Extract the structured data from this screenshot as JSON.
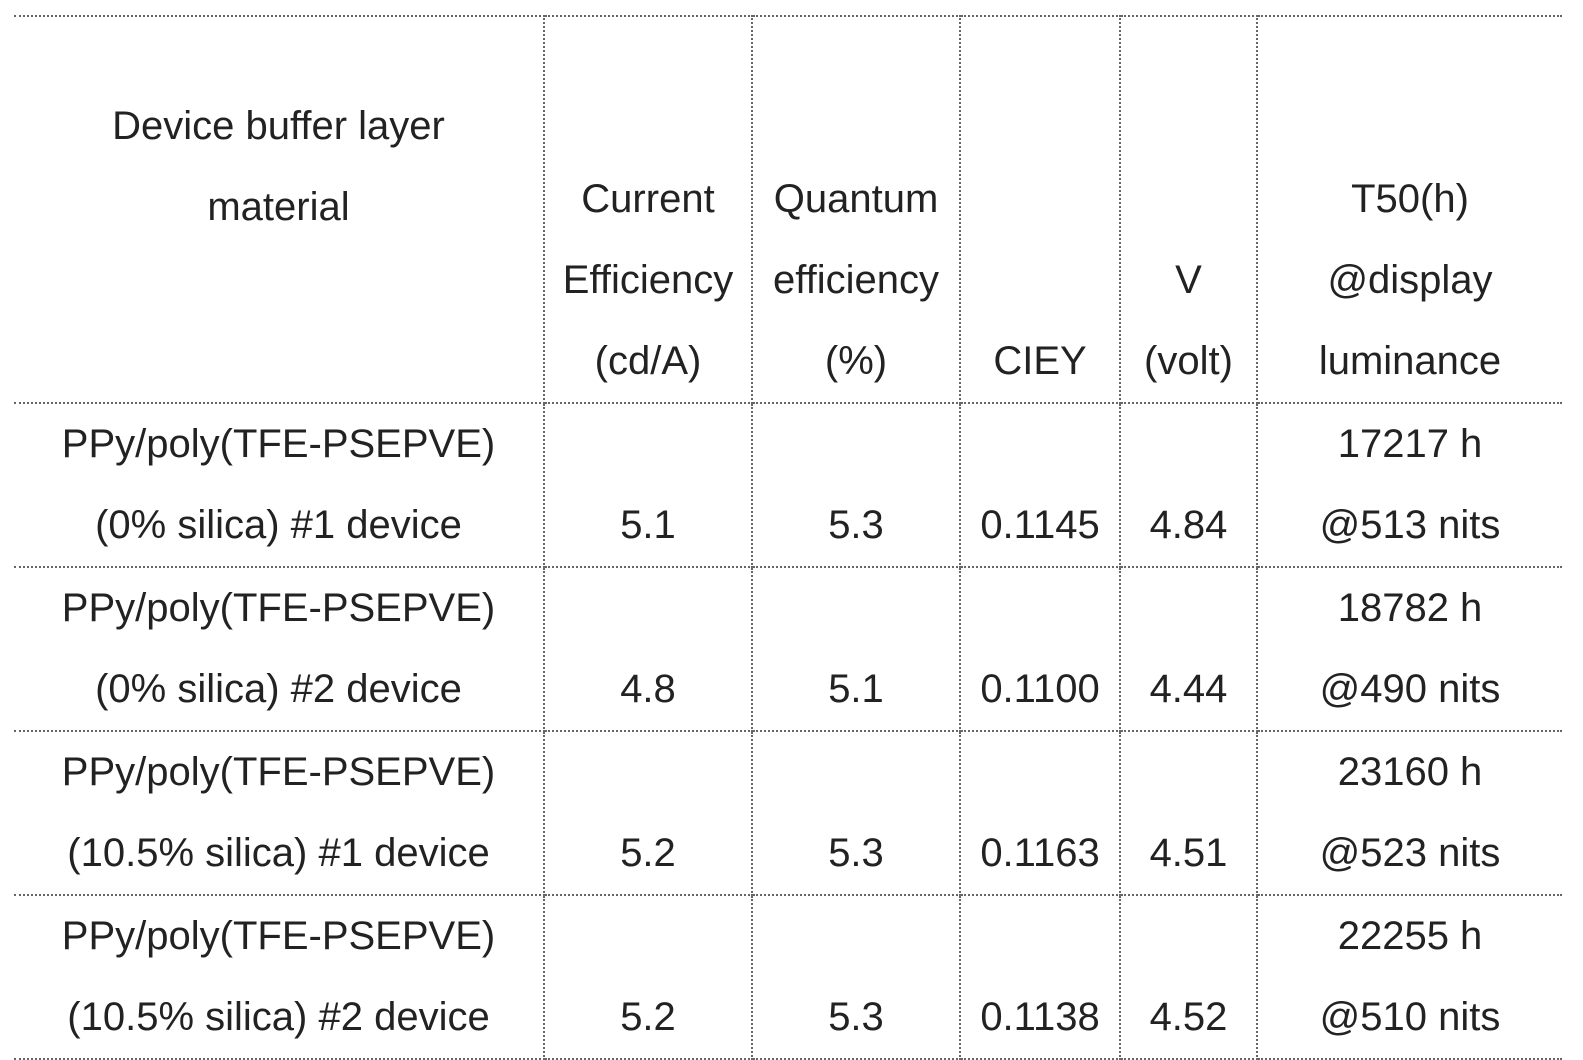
{
  "table": {
    "headers": [
      [
        "Device buffer layer",
        "material",
        ""
      ],
      [
        "Current",
        "Efficiency",
        "(cd/A)"
      ],
      [
        "Quantum",
        "efficiency",
        "(%)"
      ],
      [
        "CIEY"
      ],
      [
        "V",
        "(volt)"
      ],
      [
        "T50(h)",
        "@display",
        "luminance"
      ]
    ],
    "rows": [
      {
        "material": [
          "PPy/poly(TFE-PSEPVE)",
          "(0% silica) #1 device"
        ],
        "current_efficiency": "5.1",
        "quantum_efficiency": "5.3",
        "ciey": "0.1145",
        "voltage": "4.84",
        "t50": [
          "17217 h",
          "@513 nits"
        ]
      },
      {
        "material": [
          "PPy/poly(TFE-PSEPVE)",
          "(0% silica) #2 device"
        ],
        "current_efficiency": "4.8",
        "quantum_efficiency": "5.1",
        "ciey": "0.1100",
        "voltage": "4.44",
        "t50": [
          "18782 h",
          "@490 nits"
        ]
      },
      {
        "material": [
          "PPy/poly(TFE-PSEPVE)",
          "(10.5% silica) #1 device"
        ],
        "current_efficiency": "5.2",
        "quantum_efficiency": "5.3",
        "ciey": "0.1163",
        "voltage": "4.51",
        "t50": [
          "23160 h",
          "@523 nits"
        ]
      },
      {
        "material": [
          "PPy/poly(TFE-PSEPVE)",
          "(10.5% silica) #2 device"
        ],
        "current_efficiency": "5.2",
        "quantum_efficiency": "5.3",
        "ciey": "0.1138",
        "voltage": "4.52",
        "t50": [
          "22255 h",
          "@510 nits"
        ]
      }
    ]
  }
}
